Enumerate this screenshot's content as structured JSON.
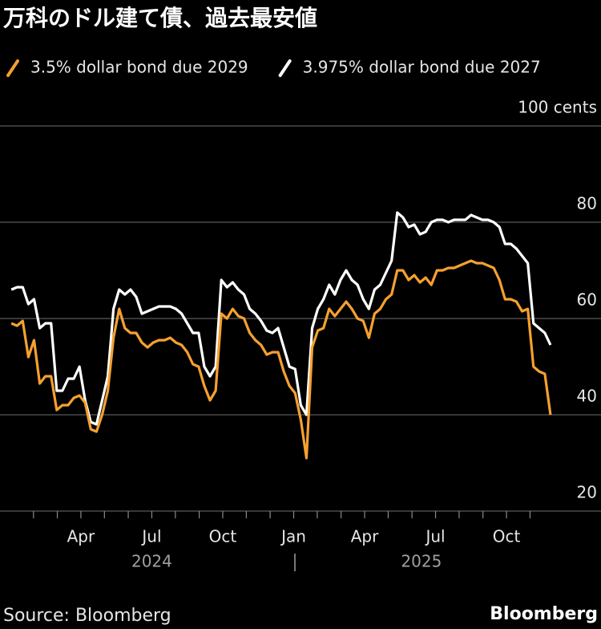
{
  "chart_data": {
    "type": "line",
    "title": "万科のドル建て債、過去最安値",
    "source": "Source: Bloomberg",
    "brand": "Bloomberg",
    "x": [
      2024.005,
      2024.025,
      2024.045,
      2024.065,
      2024.085,
      2024.105,
      2024.125,
      2024.145,
      2024.165,
      2024.185,
      2024.205,
      2024.225,
      2024.245,
      2024.265,
      2024.285,
      2024.305,
      2024.325,
      2024.345,
      2024.365,
      2024.385,
      2024.405,
      2024.425,
      2024.445,
      2024.465,
      2024.485,
      2024.505,
      2024.525,
      2024.545,
      2024.565,
      2024.585,
      2024.605,
      2024.625,
      2024.645,
      2024.665,
      2024.685,
      2024.705,
      2024.725,
      2024.745,
      2024.765,
      2024.785,
      2024.805,
      2024.825,
      2024.845,
      2024.865,
      2024.885,
      2024.905,
      2024.925,
      2024.945,
      2024.965,
      2024.985,
      2025.005,
      2025.025,
      2025.045,
      2025.065,
      2025.085,
      2025.105,
      2025.125,
      2025.145,
      2025.165,
      2025.185,
      2025.205,
      2025.225,
      2025.245,
      2025.265,
      2025.285,
      2025.305,
      2025.325,
      2025.345,
      2025.365,
      2025.385,
      2025.405,
      2025.425,
      2025.445,
      2025.465,
      2025.485,
      2025.505,
      2025.525,
      2025.545,
      2025.565,
      2025.585,
      2025.605,
      2025.625,
      2025.645,
      2025.665,
      2025.685,
      2025.705,
      2025.725,
      2025.745,
      2025.765,
      2025.785,
      2025.805,
      2025.825,
      2025.845,
      2025.865,
      2025.885,
      2025.905
    ],
    "series": [
      {
        "name": "3.5% dollar bond due 2029",
        "color": "#f5a030",
        "values": [
          59,
          58.5,
          59.5,
          52,
          55.5,
          46.5,
          48,
          48,
          41,
          42,
          42,
          43.5,
          44,
          42.5,
          37,
          36.5,
          40,
          45,
          56,
          62,
          58,
          57,
          57,
          55,
          54,
          55,
          55.5,
          55.5,
          56,
          55,
          54.5,
          53,
          50.5,
          50,
          46,
          43,
          45,
          61,
          60,
          62,
          60.5,
          60,
          57,
          55.5,
          54.5,
          52.5,
          53,
          53,
          49,
          46,
          44.5,
          39,
          31,
          54,
          57.5,
          58,
          62,
          60.5,
          62,
          63.5,
          62,
          60,
          59.5,
          56,
          61,
          62,
          64,
          65,
          70,
          70,
          68,
          69,
          67.5,
          68.5,
          67,
          70,
          70,
          70.5,
          70.5,
          71,
          71.5,
          72,
          71.5,
          71.5,
          71,
          70.5,
          68,
          64,
          64,
          63.5,
          61.5,
          62,
          50,
          49,
          48.5,
          40
        ]
      },
      {
        "name": "3.975% dollar bond due 2027",
        "color": "#ffffff",
        "values": [
          66,
          66.5,
          66.5,
          63,
          64,
          58,
          59,
          59,
          45,
          45,
          47.5,
          47.5,
          50,
          43,
          38.5,
          38,
          43,
          48,
          62,
          66,
          65,
          66,
          64.5,
          61,
          61.5,
          62,
          62.5,
          62.5,
          62.5,
          62,
          61,
          59,
          57,
          57,
          50,
          48,
          50,
          68,
          66.5,
          67.5,
          66,
          65,
          62,
          61,
          59.5,
          57.5,
          57,
          58,
          54,
          50,
          49.5,
          42,
          40,
          58,
          62,
          64,
          67,
          65,
          68,
          70,
          68,
          67,
          64,
          62,
          66,
          67,
          69.5,
          72,
          82,
          81,
          79,
          79.5,
          77.5,
          78,
          80,
          80.5,
          80.5,
          80,
          80.5,
          80.5,
          80.5,
          81.5,
          81,
          80.5,
          80.5,
          80,
          79,
          75.5,
          75.5,
          74.5,
          73,
          71.5,
          59,
          58,
          57,
          54.5
        ]
      }
    ],
    "xlim": [
      2023.965,
      2026.083
    ],
    "xticks": [
      {
        "value": 2024.25,
        "label": "Apr"
      },
      {
        "value": 2024.5,
        "label": "Jul"
      },
      {
        "value": 2024.75,
        "label": "Oct"
      },
      {
        "value": 2025.0,
        "label": "Jan"
      },
      {
        "value": 2025.25,
        "label": "Apr"
      },
      {
        "value": 2025.5,
        "label": "Jul"
      },
      {
        "value": 2025.75,
        "label": "Oct"
      }
    ],
    "xminorticks": [
      2024.083,
      2024.167,
      2024.333,
      2024.417,
      2024.583,
      2024.667,
      2024.833,
      2024.917,
      2025.083,
      2025.167,
      2025.333,
      2025.417,
      2025.583,
      2025.667,
      2025.833
    ],
    "x_year_labels": [
      {
        "value": 2024.5,
        "label": "2024"
      },
      {
        "value": 2025.45,
        "label": "2025"
      }
    ],
    "ylim": [
      20,
      100
    ],
    "yticks": [
      20,
      40,
      60,
      80,
      {
        "value": 100,
        "label": "100 cents"
      }
    ],
    "grid": true
  }
}
